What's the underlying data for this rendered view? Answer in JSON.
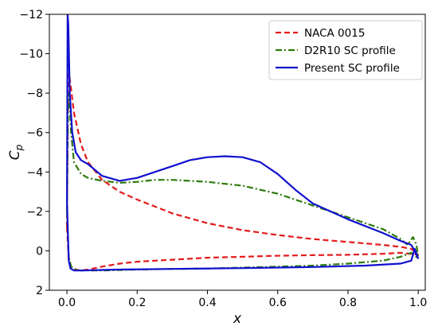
{
  "chart_data": {
    "type": "line",
    "title": "",
    "xlabel": "x",
    "ylabel": "C",
    "ylabel_sub": "p",
    "xlim": [
      -0.05,
      1.02
    ],
    "ylim": [
      2,
      -12
    ],
    "y_inverted": true,
    "xticks": [
      0.0,
      0.2,
      0.4,
      0.6,
      0.8,
      1.0
    ],
    "xtick_labels": [
      "0.0",
      "0.2",
      "0.4",
      "0.6",
      "0.8",
      "1.0"
    ],
    "yticks": [
      -12,
      -10,
      -8,
      -6,
      -4,
      -2,
      0,
      2
    ],
    "ytick_labels": [
      "−12",
      "−10",
      "−8",
      "−6",
      "−4",
      "−2",
      "0",
      "2"
    ],
    "grid": false,
    "legend_position": "top-right",
    "series": [
      {
        "name": "NACA 0015",
        "color": "#e41a1c",
        "dash": "dashed",
        "upper": [
          [
            0.0,
            -1.2
          ],
          [
            0.003,
            -8.8
          ],
          [
            0.006,
            -9.0
          ],
          [
            0.012,
            -8.2
          ],
          [
            0.02,
            -7.0
          ],
          [
            0.04,
            -5.4
          ],
          [
            0.06,
            -4.5
          ],
          [
            0.1,
            -3.6
          ],
          [
            0.15,
            -3.0
          ],
          [
            0.2,
            -2.6
          ],
          [
            0.3,
            -1.9
          ],
          [
            0.4,
            -1.4
          ],
          [
            0.5,
            -1.05
          ],
          [
            0.6,
            -0.8
          ],
          [
            0.7,
            -0.6
          ],
          [
            0.8,
            -0.45
          ],
          [
            0.9,
            -0.3
          ],
          [
            0.95,
            -0.2
          ],
          [
            0.98,
            -0.1
          ],
          [
            1.0,
            0.2
          ]
        ],
        "lower": [
          [
            0.0,
            -1.2
          ],
          [
            0.005,
            0.4
          ],
          [
            0.012,
            0.8
          ],
          [
            0.025,
            0.95
          ],
          [
            0.04,
            1.0
          ],
          [
            0.06,
            0.95
          ],
          [
            0.1,
            0.8
          ],
          [
            0.15,
            0.65
          ],
          [
            0.2,
            0.55
          ],
          [
            0.3,
            0.45
          ],
          [
            0.4,
            0.35
          ],
          [
            0.5,
            0.3
          ],
          [
            0.6,
            0.25
          ],
          [
            0.7,
            0.22
          ],
          [
            0.8,
            0.2
          ],
          [
            0.9,
            0.15
          ],
          [
            0.95,
            0.1
          ],
          [
            1.0,
            0.2
          ]
        ]
      },
      {
        "name": "D2R10 SC profile",
        "color": "#2d7a0a",
        "dash": "dashdot",
        "upper": [
          [
            0.0,
            -2.0
          ],
          [
            0.003,
            -7.0
          ],
          [
            0.006,
            -8.0
          ],
          [
            0.012,
            -6.0
          ],
          [
            0.02,
            -4.5
          ],
          [
            0.04,
            -3.9
          ],
          [
            0.06,
            -3.7
          ],
          [
            0.1,
            -3.55
          ],
          [
            0.15,
            -3.45
          ],
          [
            0.2,
            -3.5
          ],
          [
            0.25,
            -3.6
          ],
          [
            0.3,
            -3.6
          ],
          [
            0.4,
            -3.5
          ],
          [
            0.5,
            -3.3
          ],
          [
            0.6,
            -2.9
          ],
          [
            0.7,
            -2.3
          ],
          [
            0.8,
            -1.7
          ],
          [
            0.9,
            -1.1
          ],
          [
            0.95,
            -0.6
          ],
          [
            0.97,
            -0.3
          ],
          [
            0.985,
            -0.7
          ],
          [
            0.995,
            -0.3
          ],
          [
            1.0,
            0.4
          ]
        ],
        "lower": [
          [
            0.0,
            -2.0
          ],
          [
            0.005,
            0.3
          ],
          [
            0.012,
            0.8
          ],
          [
            0.025,
            0.95
          ],
          [
            0.04,
            1.0
          ],
          [
            0.06,
            1.0
          ],
          [
            0.1,
            1.0
          ],
          [
            0.2,
            0.95
          ],
          [
            0.3,
            0.92
          ],
          [
            0.4,
            0.9
          ],
          [
            0.5,
            0.85
          ],
          [
            0.6,
            0.8
          ],
          [
            0.7,
            0.75
          ],
          [
            0.8,
            0.65
          ],
          [
            0.9,
            0.5
          ],
          [
            0.95,
            0.3
          ],
          [
            0.98,
            0.1
          ],
          [
            1.0,
            0.4
          ]
        ]
      },
      {
        "name": "Present SC profile",
        "color": "#1010d0",
        "dash": "solid",
        "upper": [
          [
            0.0,
            -2.5
          ],
          [
            0.002,
            -12.0
          ],
          [
            0.004,
            -11.5
          ],
          [
            0.008,
            -8.0
          ],
          [
            0.015,
            -6.0
          ],
          [
            0.025,
            -5.0
          ],
          [
            0.04,
            -4.6
          ],
          [
            0.06,
            -4.4
          ],
          [
            0.1,
            -3.8
          ],
          [
            0.15,
            -3.55
          ],
          [
            0.2,
            -3.7
          ],
          [
            0.25,
            -4.0
          ],
          [
            0.3,
            -4.3
          ],
          [
            0.35,
            -4.6
          ],
          [
            0.4,
            -4.75
          ],
          [
            0.45,
            -4.8
          ],
          [
            0.5,
            -4.75
          ],
          [
            0.55,
            -4.5
          ],
          [
            0.6,
            -3.9
          ],
          [
            0.65,
            -3.1
          ],
          [
            0.7,
            -2.4
          ],
          [
            0.8,
            -1.6
          ],
          [
            0.9,
            -0.9
          ],
          [
            0.95,
            -0.5
          ],
          [
            0.98,
            -0.3
          ],
          [
            0.99,
            0.0
          ],
          [
            1.0,
            0.4
          ]
        ],
        "lower": [
          [
            0.0,
            -2.5
          ],
          [
            0.005,
            0.5
          ],
          [
            0.01,
            0.9
          ],
          [
            0.02,
            1.0
          ],
          [
            0.04,
            1.0
          ],
          [
            0.08,
            0.98
          ],
          [
            0.15,
            0.95
          ],
          [
            0.3,
            0.92
          ],
          [
            0.5,
            0.88
          ],
          [
            0.7,
            0.82
          ],
          [
            0.85,
            0.75
          ],
          [
            0.95,
            0.65
          ],
          [
            0.98,
            0.5
          ],
          [
            0.99,
            -0.1
          ],
          [
            1.0,
            0.4
          ]
        ]
      }
    ]
  }
}
